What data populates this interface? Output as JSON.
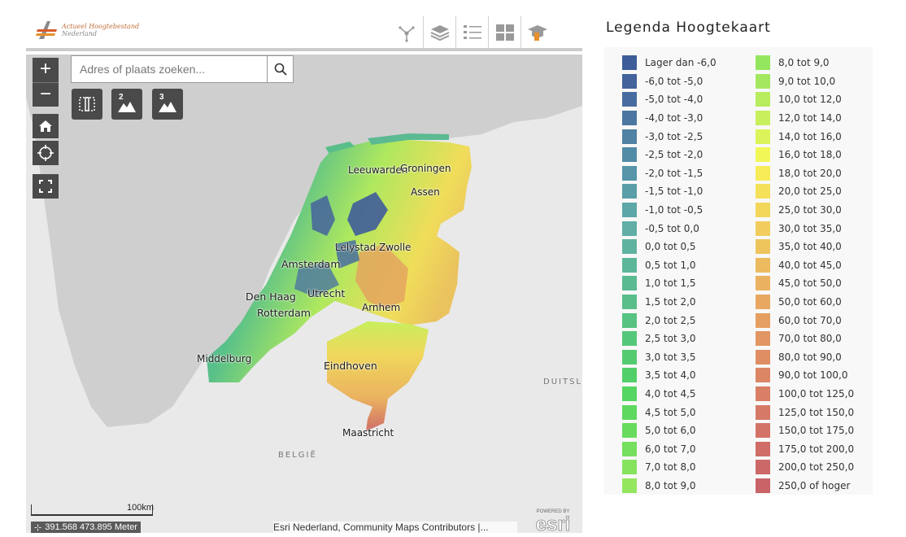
{
  "app": {
    "logo_line1": "Actueel Hoogtebestand",
    "logo_line2": "Nederland"
  },
  "toolbar": {
    "items": [
      {
        "name": "share-icon"
      },
      {
        "name": "layers-icon"
      },
      {
        "name": "legend-list-icon"
      },
      {
        "name": "grid-icon"
      },
      {
        "name": "education-icon"
      }
    ]
  },
  "search": {
    "placeholder": "Adres of plaats zoeken..."
  },
  "map_tools": {
    "zoom_in": "+",
    "zoom_out": "−",
    "btn2": "2",
    "btn3": "3"
  },
  "map": {
    "cities": [
      "Leeuwarden",
      "Groningen",
      "Assen",
      "Lelystad",
      "Zwolle",
      "Amsterdam",
      "Den Haag",
      "Utrecht",
      "Rotterdam",
      "Arnhem",
      "Middelburg",
      "Eindhoven",
      "Maastricht"
    ],
    "countries": [
      "DUITSLA",
      "BELGIË"
    ]
  },
  "scale": {
    "label": "100km"
  },
  "coords": {
    "text": "391.568 473.895 Meter"
  },
  "attribution": "Esri Nederland, Community Maps Contributors |...",
  "esri": {
    "top": "POWERED BY",
    "word": "esri"
  },
  "legend": {
    "title": "Legenda Hoogtekaart",
    "col1": [
      {
        "label": "Lager dan -6,0",
        "color": "#3f5c9a"
      },
      {
        "label": "-6,0 tot -5,0",
        "color": "#44639c"
      },
      {
        "label": "-5,0 tot -4,0",
        "color": "#486c9f"
      },
      {
        "label": "-4,0 tot -3,0",
        "color": "#4c76a1"
      },
      {
        "label": "-3,0 tot -2,5",
        "color": "#4f82a3"
      },
      {
        "label": "-2,5 tot -2,0",
        "color": "#528ba5"
      },
      {
        "label": "-2,0 tot -1,5",
        "color": "#5695a7"
      },
      {
        "label": "-1,5 tot -1,0",
        "color": "#5a9ea8"
      },
      {
        "label": "-1,0 tot -0,5",
        "color": "#5ea7a8"
      },
      {
        "label": "-0,5 tot 0,0",
        "color": "#60aea6"
      },
      {
        "label": "0,0 tot 0,5",
        "color": "#5fb2a0"
      },
      {
        "label": "0,5 tot 1,0",
        "color": "#5db69a"
      },
      {
        "label": "1,0 tot 1,5",
        "color": "#5bba92"
      },
      {
        "label": "1,5 tot 2,0",
        "color": "#59be89"
      },
      {
        "label": "2,0 tot 2,5",
        "color": "#57c282"
      },
      {
        "label": "2,5 tot 3,0",
        "color": "#55c77a"
      },
      {
        "label": "3,0 tot 3,5",
        "color": "#54cb71"
      },
      {
        "label": "3,5 tot 4,0",
        "color": "#52cf68"
      },
      {
        "label": "4,0 tot 4,5",
        "color": "#55d562"
      },
      {
        "label": "4,5 tot 5,0",
        "color": "#5ed85f"
      },
      {
        "label": "5,0 tot 6,0",
        "color": "#68db5d"
      },
      {
        "label": "6,0 tot 7,0",
        "color": "#76df5d"
      },
      {
        "label": "7,0 tot 8,0",
        "color": "#86e35e"
      },
      {
        "label": "8,0 tot 9,0",
        "color": "#94e65f"
      }
    ],
    "col2": [
      {
        "label": "8,0 tot 9,0",
        "color": "#94e65f"
      },
      {
        "label": "9,0 tot 10,0",
        "color": "#a4e85f"
      },
      {
        "label": "10,0 tot 12,0",
        "color": "#b6ec5e"
      },
      {
        "label": "12,0 tot 14,0",
        "color": "#c8ef5c"
      },
      {
        "label": "14,0 tot 16,0",
        "color": "#dcf35a"
      },
      {
        "label": "16,0 tot 18,0",
        "color": "#f2f758"
      },
      {
        "label": "18,0 tot 20,0",
        "color": "#f6ec58"
      },
      {
        "label": "20,0 tot 25,0",
        "color": "#f4e159"
      },
      {
        "label": "25,0 tot 30,0",
        "color": "#f2d75b"
      },
      {
        "label": "30,0 tot 35,0",
        "color": "#f0cd5d"
      },
      {
        "label": "35,0 tot 40,0",
        "color": "#eec45e"
      },
      {
        "label": "40,0 tot 45,0",
        "color": "#ecbb5f"
      },
      {
        "label": "45,0 tot 50,0",
        "color": "#eab260"
      },
      {
        "label": "50,0 tot 60,0",
        "color": "#e8a861"
      },
      {
        "label": "60,0 tot 70,0",
        "color": "#e59f62"
      },
      {
        "label": "70,0 tot 80,0",
        "color": "#e29663"
      },
      {
        "label": "80,0 tot 90,0",
        "color": "#df8e64"
      },
      {
        "label": "90,0 tot 100,0",
        "color": "#dc8665"
      },
      {
        "label": "100,0 tot 125,0",
        "color": "#d97f66"
      },
      {
        "label": "125,0 tot 150,0",
        "color": "#d67967"
      },
      {
        "label": "150,0 tot 175,0",
        "color": "#d37368"
      },
      {
        "label": "175,0 tot 200,0",
        "color": "#d06d68"
      },
      {
        "label": "200,0 tot 250,0",
        "color": "#cd6868"
      },
      {
        "label": "250,0 of hoger",
        "color": "#ca6368"
      }
    ]
  }
}
